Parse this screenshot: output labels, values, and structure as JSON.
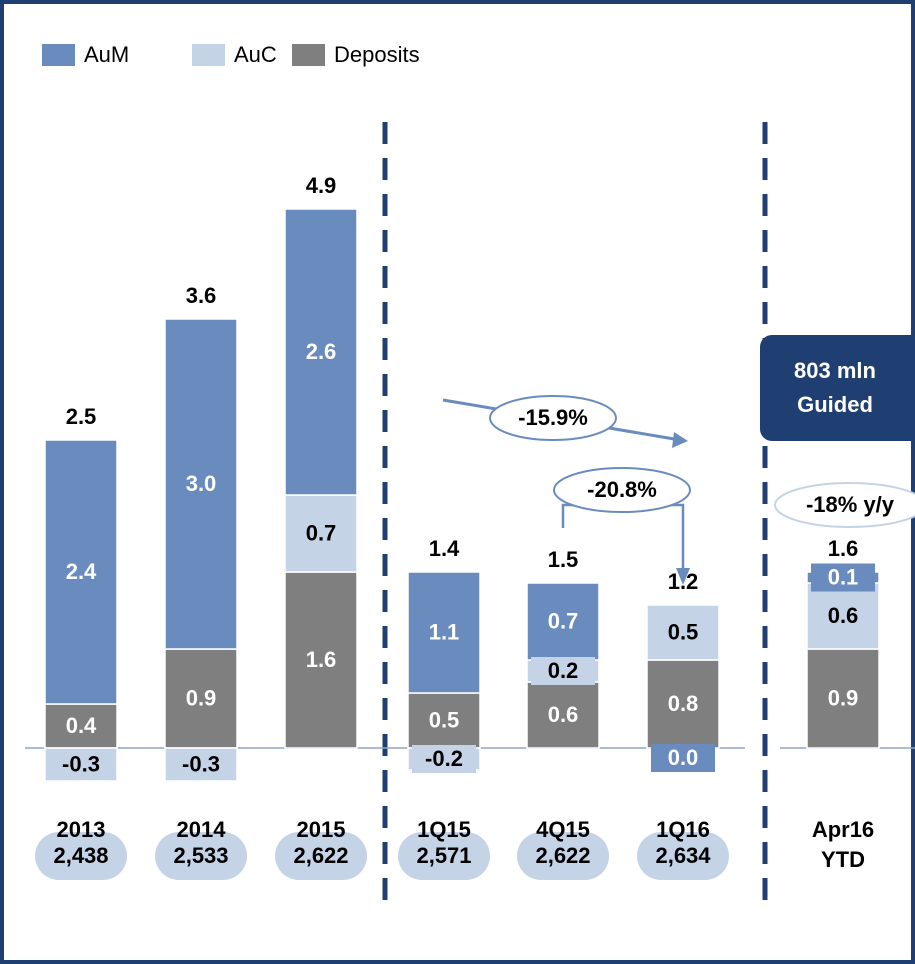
{
  "chart_data": {
    "type": "stacked_bar",
    "categories": [
      "2013",
      "2014",
      "2015",
      "1Q15",
      "4Q15",
      "1Q16",
      "Apr16 YTD"
    ],
    "series": [
      {
        "name": "AuM",
        "color": "#6a8bbd",
        "values": [
          2.4,
          3.0,
          2.6,
          1.1,
          0.7,
          0.0,
          0.1
        ],
        "value_labels": [
          "2.4",
          "3.0",
          "2.6",
          "1.1",
          "0.7",
          "0.0",
          "0.1"
        ]
      },
      {
        "name": "AuC",
        "color": "#c5d3e6",
        "values": [
          -0.3,
          -0.3,
          0.7,
          -0.2,
          0.2,
          0.5,
          0.6
        ],
        "value_labels": [
          "-0.3",
          "-0.3",
          "0.7",
          "-0.2",
          "0.2",
          "0.5",
          "0.6"
        ]
      },
      {
        "name": "Deposits",
        "color": "#7f7f7f",
        "values": [
          0.4,
          0.9,
          1.6,
          0.5,
          0.6,
          0.8,
          0.9
        ],
        "value_labels": [
          "0.4",
          "0.9",
          "1.6",
          "0.5",
          "0.6",
          "0.8",
          "0.9"
        ]
      }
    ],
    "totals": [
      2.5,
      3.6,
      4.9,
      1.4,
      1.5,
      1.2,
      1.6
    ],
    "counts": [
      "2,438",
      "2,533",
      "2,622",
      "2,571",
      "2,622",
      "2,634"
    ],
    "annotations": [
      "-15.9%",
      "-20.8%",
      "-18% y/y",
      "803 mln Guided"
    ],
    "ylim": [
      -0.5,
      5.5
    ]
  }
}
